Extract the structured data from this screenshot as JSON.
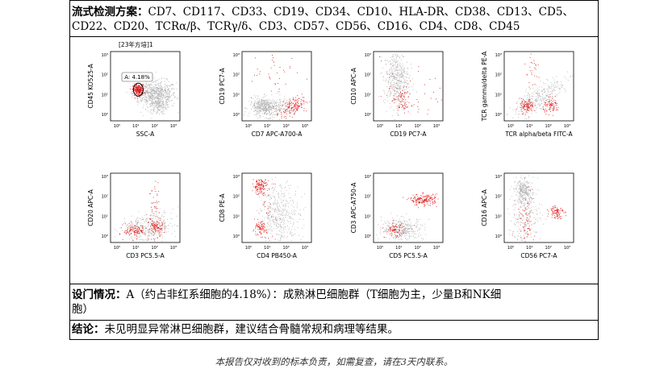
{
  "header_row": {
    "label": "流式检测方案：",
    "markers_line1": "CD7、CD117、CD33、CD19、CD34、CD10、HLA-DR、CD38、CD13、CD5、",
    "markers_line2": "CD22、CD20、TCRα/β、TCRγ/δ、CD3、CD57、CD56、CD16、CD4、CD8、CD45"
  },
  "plots": [
    {
      "id": "p1",
      "xlabel": "SSC-A",
      "ylabel": "CD45 KO525-A",
      "header": "[23年方培]1",
      "gate_label": "A: 4.18%"
    },
    {
      "id": "p2",
      "xlabel": "CD7 APC-A700-A",
      "ylabel": "CD19 PC7-A"
    },
    {
      "id": "p3",
      "xlabel": "CD19 PC7-A",
      "ylabel": "CD10 APC-A"
    },
    {
      "id": "p4",
      "xlabel": "TCR alpha/beta FITC-A",
      "ylabel": "TCR gamma/delta PE-A"
    },
    {
      "id": "p5",
      "xlabel": "CD3 PC5.5-A",
      "ylabel": "CD20 APC-A"
    },
    {
      "id": "p6",
      "xlabel": "CD4 PB450-A",
      "ylabel": "CD8 PE-A"
    },
    {
      "id": "p7",
      "xlabel": "CD5 PC5.5-A",
      "ylabel": "CD3 APC-A750-A"
    },
    {
      "id": "p8",
      "xlabel": "CD56 PC7-A",
      "ylabel": "CD16 APC-A"
    }
  ],
  "gating_row": {
    "label": "设门情况：",
    "text_line1": "A（约占非红系细胞的4.18%）：成熟淋巴细胞群（T细胞为主，少量B和NK细",
    "text_line2": "胞）"
  },
  "conclusion_row": {
    "label": "结论：",
    "text": "未见明显异常淋巴细胞群，建议结合骨髓常规和病理等结果。"
  },
  "footer": "本报告仅对收到的标本负责，如需复查，请在3天内联系。",
  "colors": {
    "gray_population": "#b4b4b4",
    "red_population": "#e01818",
    "axis": "#000000"
  }
}
